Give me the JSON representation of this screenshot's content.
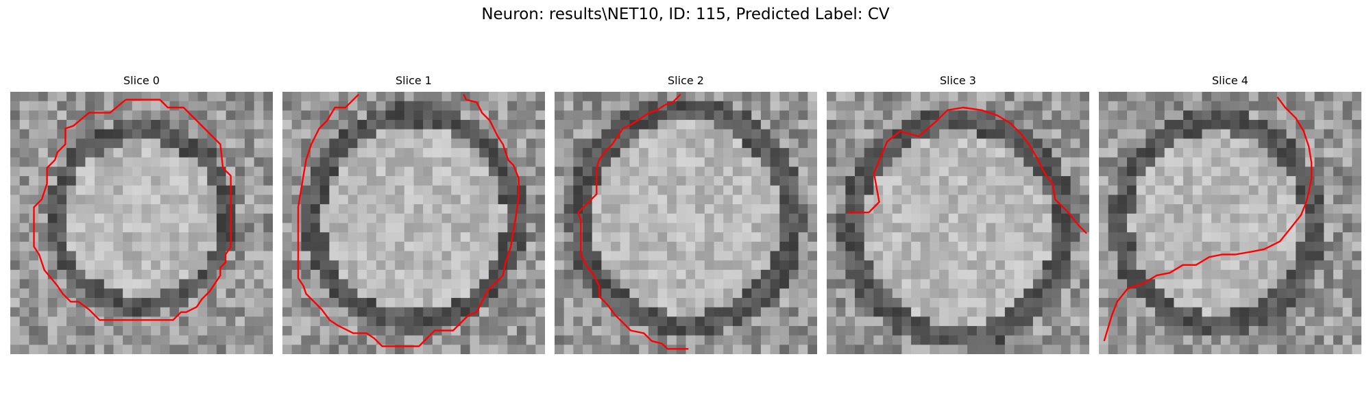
{
  "figure": {
    "title": "Neuron: results\\NET10, ID: 115, Predicted Label: CV"
  },
  "panels": [
    {
      "title": "Slice 0"
    },
    {
      "title": "Slice 1"
    },
    {
      "title": "Slice 2"
    },
    {
      "title": "Slice 3"
    },
    {
      "title": "Slice 4"
    }
  ],
  "colors": {
    "contour": "#ff0000",
    "background": "#ffffff"
  }
}
